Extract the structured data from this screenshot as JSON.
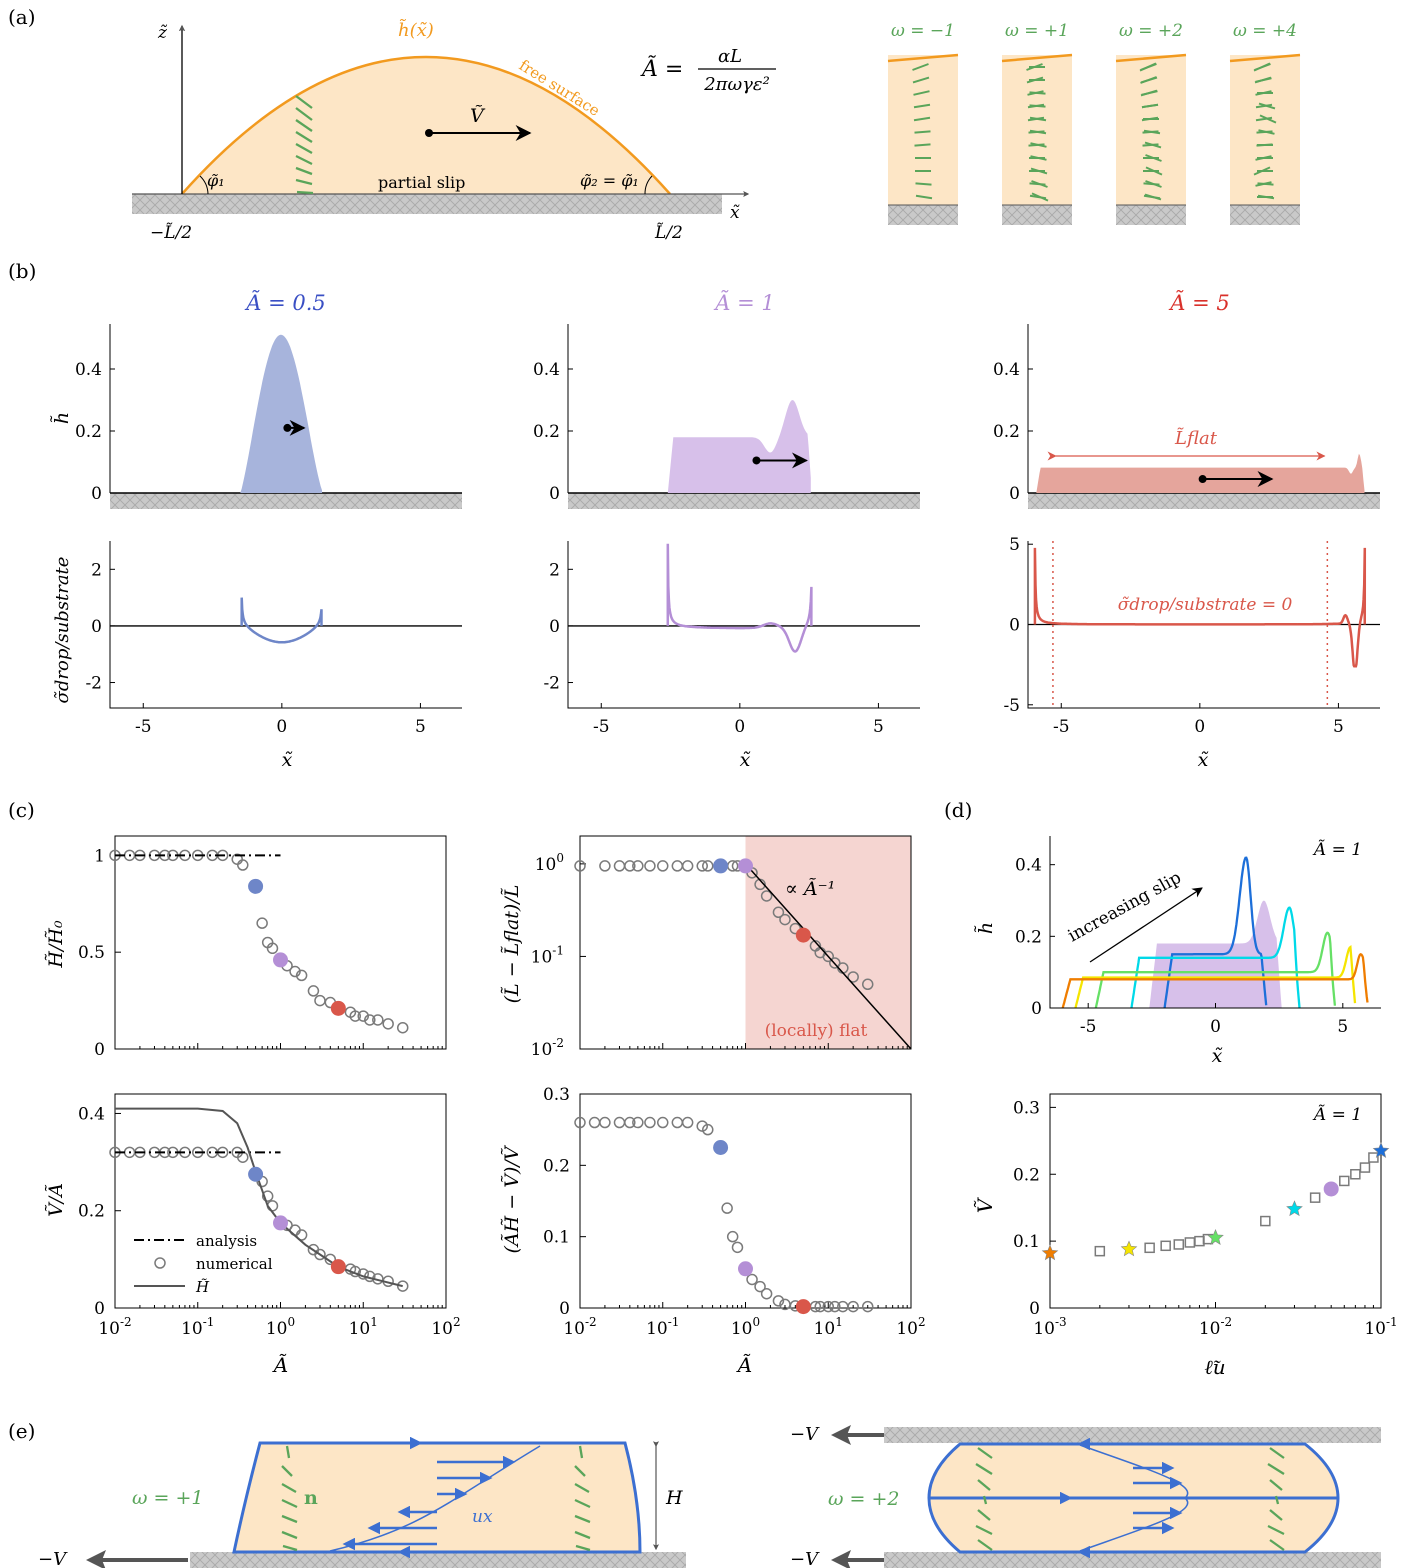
{
  "panel_labels": {
    "a": "(a)",
    "b": "(b)",
    "c": "(c)",
    "d": "(d)",
    "e": "(e)"
  },
  "colors": {
    "drop_fill": "#fde6c6",
    "surface": "#f29a1f",
    "director": "#5aa55a",
    "a05": "#6e86c8",
    "a1": "#b48fd6",
    "a5": "#d9574a",
    "flow": "#3c6fd1",
    "substrate": "#c9c9c9",
    "grey_marker": "#7a7a7a"
  },
  "panel_a": {
    "h_label": "h̃(x̃)",
    "free_surface": "free surface",
    "velocity": "Ṽ",
    "formula_lhs": "Ã =",
    "formula_num": "αL",
    "formula_den": "2πωγε²",
    "z_axis": "z̃",
    "x_axis": "x̃",
    "phi1": "φ̃₁",
    "phi2": "φ̃₂ = φ̃₁",
    "partial_slip": "partial slip",
    "left_end": "−L̃/2",
    "right_end": "L̃/2",
    "omega_labels": [
      "ω = −1",
      "ω = +1",
      "ω = +2",
      "ω = +4"
    ]
  },
  "panel_b": {
    "titles": [
      "Ã = 0.5",
      "Ã = 1",
      "Ã = 5"
    ],
    "ylabel_top": "h̃",
    "ylabel_bottom": "σ̃drop/substrate",
    "xlabel": "x̃",
    "flat_label": "L̃flat",
    "sigma_zero": "σ̃drop/substrate = 0",
    "top_yticks": [
      "0",
      "0.2",
      "0.4"
    ],
    "bot_yticks_12": [
      "-2",
      "0",
      "2"
    ],
    "bot_yticks_3": [
      "-5",
      "0",
      "5"
    ],
    "xticks": [
      "-5",
      "0",
      "5"
    ]
  },
  "panel_c": {
    "xlabel": "Ã",
    "ylabels": [
      "H̃/H̃₀",
      "(L̃ − L̃flat)/L̃",
      "Ṽ/Ã",
      "(ÃH̃ − Ṽ)/Ṽ"
    ],
    "legend": [
      "analysis",
      "numerical",
      "H̃"
    ],
    "power_law": "∝ Ã⁻¹",
    "flat_region": "(locally) flat"
  },
  "panel_d": {
    "annot": "Ã = 1",
    "slip_label": "increasing slip",
    "ylabel_top": "h̃",
    "xlabel_top": "x̃",
    "ylabel_bottom": "Ṽ",
    "xlabel_bottom": "ℓ̃u"
  },
  "panel_e": {
    "omega1": "ω = +1",
    "omega2": "ω = +2",
    "n_label": "n",
    "ux_label": "ux",
    "H_label": "H",
    "minusV": "−V"
  },
  "chart_data": [
    {
      "type": "scatter",
      "panel": "c-top-left",
      "xlabel": "Ã",
      "ylabel": "H̃/H̃₀",
      "xscale": "log",
      "xlim": [
        0.01,
        100
      ],
      "ylim": [
        0,
        1.1
      ],
      "series": [
        {
          "name": "numerical",
          "x": [
            0.01,
            0.015,
            0.02,
            0.03,
            0.04,
            0.05,
            0.07,
            0.1,
            0.15,
            0.2,
            0.3,
            0.35,
            0.6,
            0.7,
            0.8,
            1.2,
            1.5,
            1.8,
            2.5,
            3,
            4,
            7,
            8,
            10,
            12,
            15,
            20,
            30
          ],
          "y": [
            1,
            1,
            1,
            1,
            1,
            1,
            1,
            1,
            1,
            1,
            0.98,
            0.95,
            0.65,
            0.55,
            0.52,
            0.43,
            0.4,
            0.38,
            0.3,
            0.25,
            0.24,
            0.19,
            0.17,
            0.17,
            0.15,
            0.15,
            0.13,
            0.11
          ]
        },
        {
          "name": "analysis",
          "x": [
            0.01,
            1
          ],
          "y": [
            1,
            1
          ]
        }
      ],
      "highlights": [
        {
          "x": 0.5,
          "y": 0.84,
          "color": "a05"
        },
        {
          "x": 1,
          "y": 0.46,
          "color": "a1"
        },
        {
          "x": 5,
          "y": 0.21,
          "color": "a5"
        }
      ]
    },
    {
      "type": "scatter",
      "panel": "c-top-right",
      "xlabel": "Ã",
      "ylabel": "(L̃ − L̃flat)/L̃",
      "xscale": "log",
      "yscale": "log",
      "xlim": [
        0.01,
        100
      ],
      "ylim": [
        0.01,
        2
      ],
      "series": [
        {
          "name": "numerical",
          "x": [
            0.01,
            0.02,
            0.03,
            0.04,
            0.05,
            0.07,
            0.1,
            0.15,
            0.2,
            0.3,
            0.35,
            0.7,
            0.8,
            1.2,
            1.5,
            1.8,
            2.5,
            3,
            4,
            7,
            8,
            10,
            12,
            15,
            20,
            30
          ],
          "y": [
            0.95,
            0.95,
            0.95,
            0.95,
            0.95,
            0.95,
            0.95,
            0.95,
            0.95,
            0.95,
            0.95,
            0.95,
            0.95,
            0.8,
            0.6,
            0.45,
            0.3,
            0.25,
            0.2,
            0.13,
            0.11,
            0.1,
            0.085,
            0.075,
            0.06,
            0.05
          ]
        },
        {
          "name": "∝ Ã⁻¹",
          "x": [
            1,
            100
          ],
          "y": [
            1,
            0.01
          ]
        }
      ],
      "highlights": [
        {
          "x": 0.5,
          "y": 0.95,
          "color": "a05"
        },
        {
          "x": 1,
          "y": 0.95,
          "color": "a1"
        },
        {
          "x": 5,
          "y": 0.17,
          "color": "a5"
        }
      ]
    },
    {
      "type": "scatter",
      "panel": "c-bottom-left",
      "xlabel": "Ã",
      "ylabel": "Ṽ/Ã",
      "xscale": "log",
      "xlim": [
        0.01,
        100
      ],
      "ylim": [
        0,
        0.44
      ],
      "series": [
        {
          "name": "numerical",
          "x": [
            0.01,
            0.015,
            0.02,
            0.03,
            0.04,
            0.05,
            0.07,
            0.1,
            0.15,
            0.2,
            0.3,
            0.35,
            0.6,
            0.7,
            0.8,
            1.2,
            1.5,
            1.8,
            2.5,
            3,
            4,
            7,
            8,
            10,
            12,
            15,
            20,
            30
          ],
          "y": [
            0.32,
            0.32,
            0.32,
            0.32,
            0.32,
            0.32,
            0.32,
            0.32,
            0.32,
            0.32,
            0.32,
            0.31,
            0.26,
            0.23,
            0.21,
            0.17,
            0.16,
            0.15,
            0.12,
            0.11,
            0.1,
            0.08,
            0.075,
            0.07,
            0.065,
            0.06,
            0.055,
            0.045
          ]
        },
        {
          "name": "analysis",
          "x": [
            0.01,
            1
          ],
          "y": [
            0.32,
            0.32
          ]
        },
        {
          "name": "H̃",
          "x": [
            0.01,
            0.1,
            0.2,
            0.3,
            0.4,
            0.5,
            0.7,
            1,
            2,
            3,
            5,
            10,
            30
          ],
          "y": [
            0.41,
            0.41,
            0.405,
            0.38,
            0.33,
            0.28,
            0.21,
            0.175,
            0.13,
            0.11,
            0.085,
            0.065,
            0.045
          ]
        }
      ],
      "highlights": [
        {
          "x": 0.5,
          "y": 0.275,
          "color": "a05"
        },
        {
          "x": 1,
          "y": 0.175,
          "color": "a1"
        },
        {
          "x": 5,
          "y": 0.085,
          "color": "a5"
        }
      ]
    },
    {
      "type": "scatter",
      "panel": "c-bottom-right",
      "xlabel": "Ã",
      "ylabel": "(ÃH̃ − Ṽ)/Ṽ",
      "xscale": "log",
      "xlim": [
        0.01,
        100
      ],
      "ylim": [
        0,
        0.3
      ],
      "series": [
        {
          "name": "numerical",
          "x": [
            0.01,
            0.015,
            0.02,
            0.03,
            0.04,
            0.05,
            0.07,
            0.1,
            0.15,
            0.2,
            0.3,
            0.35,
            0.6,
            0.7,
            0.8,
            1.2,
            1.5,
            1.8,
            2.5,
            3,
            4,
            7,
            8,
            10,
            12,
            15,
            20,
            30
          ],
          "y": [
            0.26,
            0.26,
            0.26,
            0.26,
            0.26,
            0.26,
            0.26,
            0.26,
            0.26,
            0.26,
            0.255,
            0.25,
            0.14,
            0.1,
            0.085,
            0.04,
            0.03,
            0.02,
            0.01,
            0.005,
            0.003,
            0.002,
            0.002,
            0.002,
            0.002,
            0.002,
            0.002,
            0.002
          ]
        }
      ],
      "highlights": [
        {
          "x": 0.5,
          "y": 0.225,
          "color": "a05"
        },
        {
          "x": 1,
          "y": 0.055,
          "color": "a1"
        },
        {
          "x": 5,
          "y": 0.002,
          "color": "a5"
        }
      ]
    },
    {
      "type": "scatter",
      "panel": "d-bottom",
      "xlabel": "ℓ̃u",
      "ylabel": "Ṽ",
      "xscale": "log",
      "xlim": [
        0.001,
        0.1
      ],
      "ylim": [
        0,
        0.32
      ],
      "series": [
        {
          "name": "squares",
          "x": [
            0.002,
            0.004,
            0.005,
            0.006,
            0.007,
            0.008,
            0.009,
            0.02,
            0.04,
            0.06,
            0.07,
            0.08,
            0.09
          ],
          "y": [
            0.085,
            0.09,
            0.093,
            0.095,
            0.098,
            0.1,
            0.103,
            0.13,
            0.165,
            0.19,
            0.2,
            0.21,
            0.225
          ]
        },
        {
          "name": "stars",
          "x": [
            0.001,
            0.003,
            0.01,
            0.03,
            0.1
          ],
          "y": [
            0.082,
            0.088,
            0.105,
            0.148,
            0.235
          ]
        }
      ],
      "highlights": [
        {
          "x": 0.05,
          "y": 0.178,
          "color": "a1"
        }
      ]
    }
  ]
}
